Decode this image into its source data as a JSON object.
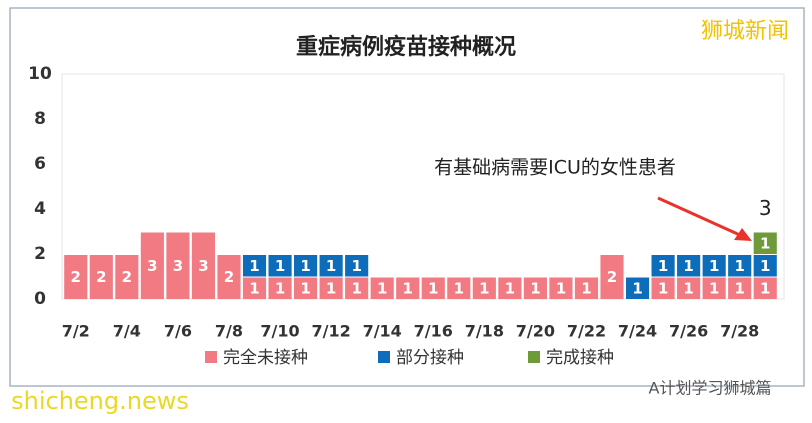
{
  "chart_data": {
    "type": "stacked_bar",
    "title": "重症病例疫苗接种概况",
    "categories": [
      "7/2",
      null,
      "7/4",
      null,
      "7/6",
      null,
      "7/8",
      null,
      "7/10",
      null,
      "7/12",
      null,
      "7/14",
      null,
      "7/16",
      null,
      "7/18",
      null,
      "7/20",
      null,
      "7/22",
      null,
      "7/24",
      null,
      "7/26",
      null,
      "7/28",
      null
    ],
    "series": [
      {
        "name": "完全未接种",
        "color": "#f27a82",
        "values": [
          2,
          2,
          2,
          3,
          3,
          3,
          2,
          1,
          1,
          1,
          1,
          1,
          1,
          1,
          1,
          1,
          1,
          1,
          1,
          1,
          1,
          2,
          null,
          1,
          1,
          1,
          1,
          1
        ]
      },
      {
        "name": "部分接种",
        "color": "#0e6dba",
        "values": [
          null,
          null,
          null,
          null,
          null,
          null,
          null,
          1,
          1,
          1,
          1,
          1,
          null,
          null,
          null,
          null,
          null,
          null,
          null,
          null,
          null,
          null,
          1,
          1,
          1,
          1,
          1,
          1
        ]
      },
      {
        "name": "完成接种",
        "color": "#6e9a3a",
        "values": [
          null,
          null,
          null,
          null,
          null,
          null,
          null,
          null,
          null,
          null,
          null,
          null,
          null,
          null,
          null,
          null,
          null,
          null,
          null,
          null,
          null,
          null,
          null,
          null,
          null,
          null,
          null,
          1
        ]
      }
    ],
    "totals": [
      null,
      null,
      null,
      null,
      null,
      null,
      null,
      null,
      null,
      null,
      null,
      null,
      null,
      null,
      null,
      null,
      null,
      null,
      null,
      null,
      null,
      null,
      null,
      null,
      null,
      null,
      null,
      3
    ],
    "annotation": "有基础病需要ICU的女性患者",
    "ylim": [
      0,
      10
    ],
    "yticks": [
      0,
      2,
      4,
      6,
      8,
      10
    ],
    "grid": false,
    "watermarks": [
      "狮城新闻",
      "shicheng.news",
      "A计划学习狮城篇"
    ]
  }
}
